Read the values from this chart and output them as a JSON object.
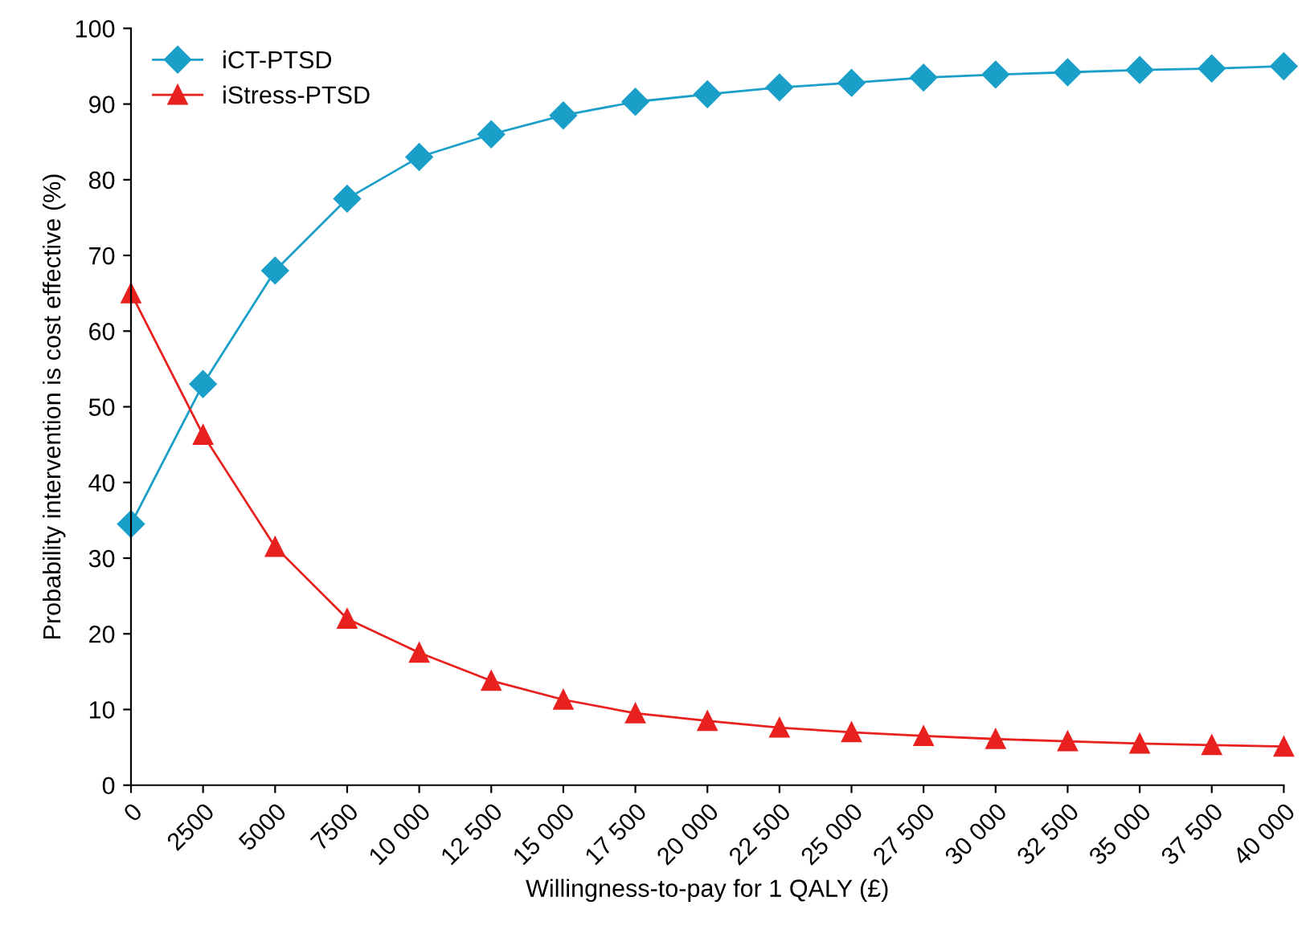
{
  "chart_data": {
    "type": "line",
    "xlabel": "Willingness-to-pay for 1 QALY (£)",
    "ylabel": "Probability intervention is cost effective (%)",
    "x": [
      0,
      2500,
      5000,
      7500,
      10000,
      12500,
      15000,
      17500,
      20000,
      22500,
      25000,
      27500,
      30000,
      32500,
      35000,
      37500,
      40000
    ],
    "series": [
      {
        "name": "iCT-PTSD",
        "color": "#1a9fc9",
        "marker": "diamond",
        "values": [
          34.5,
          53,
          68,
          77.5,
          83,
          86,
          88.5,
          90.3,
          91.3,
          92.2,
          92.8,
          93.5,
          93.9,
          94.2,
          94.5,
          94.7,
          95
        ]
      },
      {
        "name": "iStress-PTSD",
        "color": "#e8211f",
        "marker": "triangle",
        "values": [
          65,
          46.3,
          31.5,
          22,
          17.5,
          13.8,
          11.3,
          9.5,
          8.5,
          7.6,
          7,
          6.5,
          6.1,
          5.8,
          5.5,
          5.3,
          5.1
        ]
      }
    ],
    "xlim": [
      0,
      40000
    ],
    "xticks": [
      0,
      2500,
      5000,
      7500,
      {
        "value": 10000,
        "label": "10 000"
      },
      {
        "value": 12500,
        "label": "12 500"
      },
      {
        "value": 15000,
        "label": "15 000"
      },
      {
        "value": 17500,
        "label": "17 500"
      },
      {
        "value": 20000,
        "label": "20 000"
      },
      {
        "value": 22500,
        "label": "22 500"
      },
      {
        "value": 25000,
        "label": "25 000"
      },
      {
        "value": 27500,
        "label": "27 500"
      },
      {
        "value": 30000,
        "label": "30 000"
      },
      {
        "value": 32500,
        "label": "32 500"
      },
      {
        "value": 35000,
        "label": "35 000"
      },
      {
        "value": 37500,
        "label": "37 500"
      },
      {
        "value": 40000,
        "label": "40 000"
      }
    ],
    "ylim": [
      0,
      100
    ],
    "yticks": [
      0,
      10,
      20,
      30,
      40,
      50,
      60,
      70,
      80,
      90,
      100
    ],
    "grid": false,
    "legend": "top left",
    "line_style": "solid"
  }
}
